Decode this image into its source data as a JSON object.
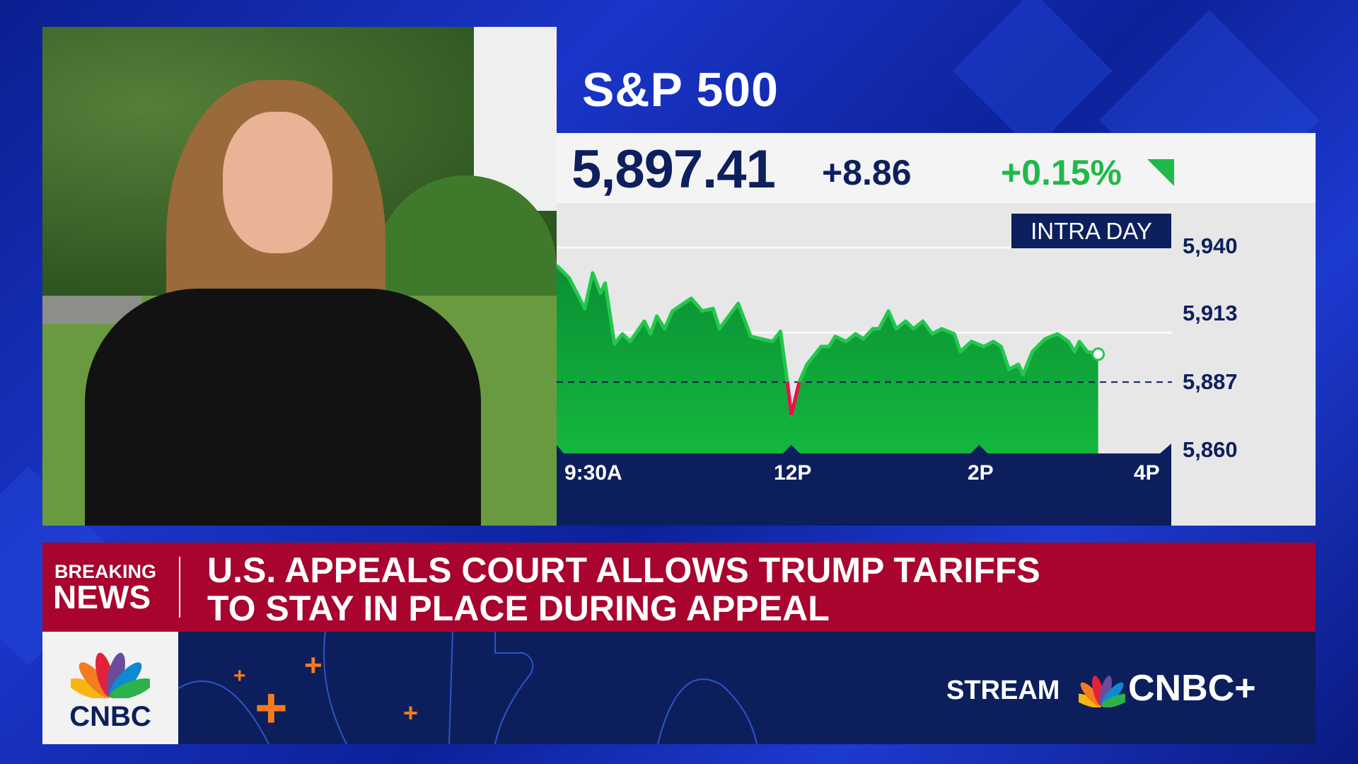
{
  "index": {
    "name": "S&P 500",
    "price": "5,897.41",
    "change": "+8.86",
    "percent_change": "+0.15%",
    "direction": "up",
    "up_color": "#1fb948",
    "down_color": "#e8104a"
  },
  "chart_data": {
    "type": "area",
    "title": "INTRA DAY",
    "x_ticks": [
      "9:30A",
      "12P",
      "2P",
      "4P"
    ],
    "y_ticks": [
      "5,940",
      "5,913",
      "5,887",
      "5,860"
    ],
    "ylim": [
      5860,
      5940
    ],
    "baseline": 5887,
    "x_unit": "minutes after 9:30A",
    "xlim": [
      0,
      390
    ],
    "x": [
      0,
      8,
      18,
      23,
      28,
      31,
      37,
      42,
      47,
      56,
      60,
      64,
      69,
      74,
      86,
      93,
      100,
      104,
      116,
      124,
      138,
      143,
      147,
      150,
      155,
      160,
      169,
      174,
      178,
      185,
      191,
      196,
      202,
      206,
      212,
      217,
      223,
      228,
      234,
      240,
      246,
      254,
      258,
      265,
      273,
      279,
      284,
      289,
      295,
      298,
      304,
      312,
      320,
      327,
      331,
      334,
      339,
      346
    ],
    "y": [
      5933,
      5928,
      5916,
      5930,
      5922,
      5926,
      5902,
      5906,
      5903,
      5911,
      5906,
      5913,
      5908,
      5915,
      5920,
      5915,
      5916,
      5908,
      5918,
      5905,
      5903,
      5907,
      5889,
      5874,
      5887,
      5894,
      5901,
      5901,
      5905,
      5903,
      5906,
      5904,
      5908,
      5908,
      5915,
      5908,
      5911,
      5908,
      5911,
      5906,
      5908,
      5906,
      5899,
      5903,
      5901,
      5903,
      5901,
      5892,
      5894,
      5890,
      5899,
      5904,
      5906,
      5903,
      5899,
      5903,
      5899,
      5898
    ]
  },
  "breaking": {
    "label_top": "BREAKING",
    "label_bottom": "NEWS",
    "headline_1": "U.S. APPEALS COURT ALLOWS TRUMP TARIFFS",
    "headline_2": "TO STAY IN PLACE DURING APPEAL"
  },
  "footer": {
    "network": "CNBC",
    "stream_label": "STREAM",
    "stream_brand": "CNBC+",
    "accent": "#f47b20"
  }
}
